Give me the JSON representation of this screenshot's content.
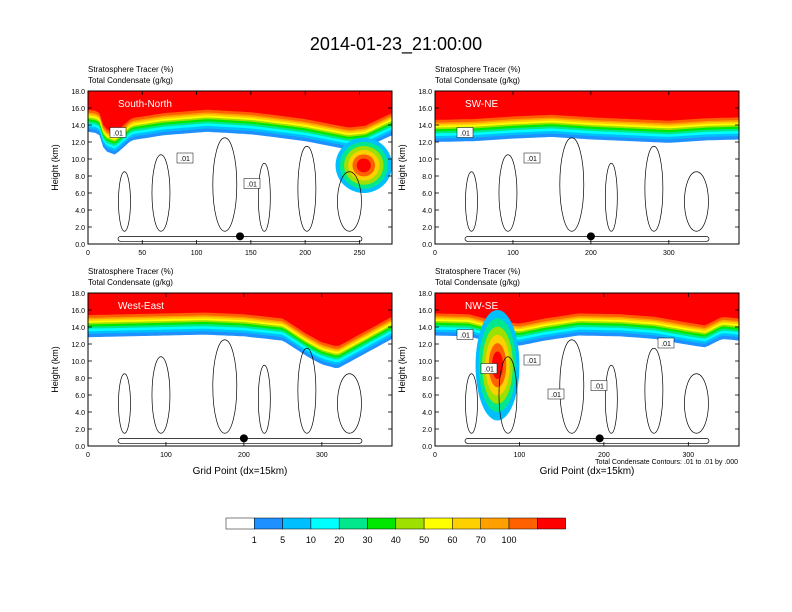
{
  "page": {
    "title": "2014-01-23_21:00:00",
    "footnote": "Total Condensate Contours: .01 to .01 by .000"
  },
  "colorbar": {
    "colors": [
      "#ffffff",
      "#1e90ff",
      "#00bfff",
      "#00ffff",
      "#00e88b",
      "#00e800",
      "#9ee000",
      "#ffff00",
      "#ffd000",
      "#ffa000",
      "#ff6000",
      "#ff0000"
    ],
    "labels": [
      "1",
      "5",
      "10",
      "20",
      "30",
      "40",
      "50",
      "60",
      "70",
      "100"
    ]
  },
  "chart_data": [
    {
      "type": "contour",
      "subtitle_line1": "Stratosphere Tracer   (%)",
      "subtitle_line2": "Total Condensate   (g/kg)",
      "cross_section_label": "South-North",
      "ylabel": "Height (km)",
      "xlabel": "",
      "xlim": [
        0,
        280
      ],
      "ylim": [
        0,
        18
      ],
      "xticks": [
        0,
        50,
        100,
        150,
        200,
        250
      ],
      "yticks": [
        "0.0",
        "2.0",
        "4.0",
        "6.0",
        "8.0",
        "10.0",
        "12.0",
        "14.0",
        "16.0",
        "18.0"
      ],
      "marker_x": 140,
      "contour_labels": [
        ".01",
        ".01",
        ".01"
      ],
      "tracer_top_km": [
        15.6,
        15.4,
        13.4,
        12.9,
        14.6,
        15.2,
        15.6,
        15.3,
        15.0,
        14.5,
        14.0,
        13.5,
        13.7,
        14.6,
        15.2
      ],
      "tracer_top_x": [
        0,
        10,
        15,
        25,
        40,
        70,
        110,
        150,
        170,
        200,
        220,
        240,
        255,
        270,
        280
      ],
      "intrusion_x_range": [
        228,
        280
      ],
      "intrusion_height_km": [
        6.0,
        12.5
      ]
    },
    {
      "type": "contour",
      "subtitle_line1": "Stratosphere Tracer   (%)",
      "subtitle_line2": "Total Condensate   (g/kg)",
      "cross_section_label": "SW-NE",
      "ylabel": "Height (km)",
      "xlabel": "",
      "xlim": [
        0,
        390
      ],
      "ylim": [
        0,
        18
      ],
      "xticks": [
        0,
        100,
        200,
        300
      ],
      "yticks": [
        "0.0",
        "2.0",
        "4.0",
        "6.0",
        "8.0",
        "10.0",
        "12.0",
        "14.0",
        "16.0",
        "18.0"
      ],
      "marker_x": 200,
      "contour_labels": [
        ".01",
        ".01"
      ],
      "tracer_top_km": [
        14.4,
        14.5,
        14.8,
        15.0,
        14.7,
        14.5,
        14.3,
        14.6,
        14.7
      ],
      "tracer_top_x": [
        0,
        50,
        100,
        150,
        200,
        250,
        300,
        350,
        390
      ]
    },
    {
      "type": "contour",
      "subtitle_line1": "Stratosphere Tracer   (%)",
      "subtitle_line2": "Total Condensate   (g/kg)",
      "cross_section_label": "West-East",
      "ylabel": "Height (km)",
      "xlabel": "Grid Point (dx=15km)",
      "xlim": [
        0,
        390
      ],
      "ylim": [
        0,
        18
      ],
      "xticks": [
        0,
        100,
        200,
        300
      ],
      "yticks": [
        "0.0",
        "2.0",
        "4.0",
        "6.0",
        "8.0",
        "10.0",
        "12.0",
        "14.0",
        "16.0",
        "18.0"
      ],
      "marker_x": 200,
      "contour_labels": [],
      "tracer_top_km": [
        15.2,
        15.3,
        15.4,
        15.5,
        15.3,
        14.8,
        13.0,
        12.0,
        11.5,
        13.5,
        15.0
      ],
      "tracer_top_x": [
        0,
        50,
        100,
        150,
        200,
        250,
        280,
        300,
        320,
        360,
        390
      ]
    },
    {
      "type": "contour",
      "subtitle_line1": "Stratosphere Tracer   (%)",
      "subtitle_line2": "Total Condensate   (g/kg)",
      "cross_section_label": "NW-SE",
      "ylabel": "Height (km)",
      "xlabel": "Grid Point (dx=15km)",
      "xlim": [
        0,
        360
      ],
      "ylim": [
        0,
        18
      ],
      "xticks": [
        0,
        100,
        200,
        300
      ],
      "yticks": [
        "0.0",
        "2.0",
        "4.0",
        "6.0",
        "8.0",
        "10.0",
        "12.0",
        "14.0",
        "16.0",
        "18.0"
      ],
      "marker_x": 195,
      "contour_labels": [
        ".01",
        ".01",
        ".01",
        ".01",
        ".01",
        ".01"
      ],
      "tracer_top_km": [
        15.4,
        15.3,
        14.5,
        14.2,
        14.8,
        15.4,
        15.3,
        15.0,
        14.3,
        14.0,
        15.0,
        14.8
      ],
      "tracer_top_x": [
        0,
        40,
        70,
        100,
        130,
        170,
        220,
        260,
        300,
        320,
        340,
        360
      ],
      "intrusion_x_range": [
        48,
        100
      ],
      "intrusion_height_km": [
        3.0,
        16.0
      ]
    }
  ]
}
